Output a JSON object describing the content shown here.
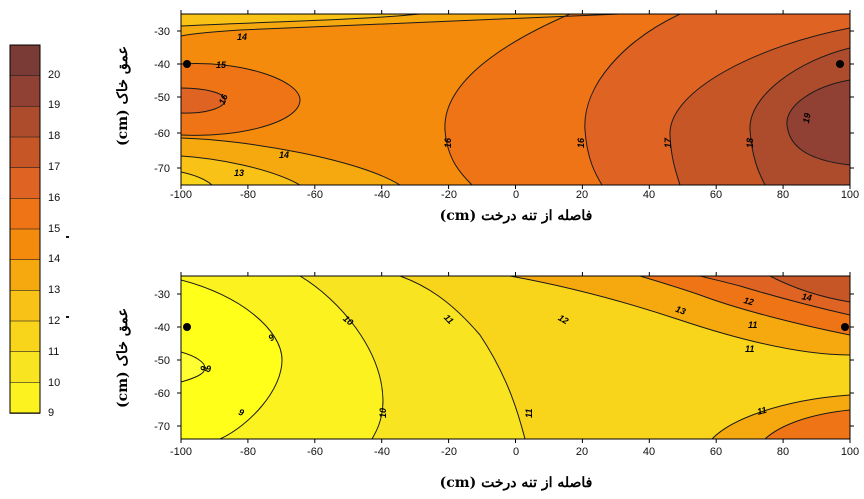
{
  "colors": {
    "9": "#ffff1a",
    "10": "#fbf21f",
    "11": "#f9e422",
    "12": "#f8d41b",
    "13": "#f8c217",
    "14": "#f6a90f",
    "15": "#f48b0c",
    "16": "#ef7415",
    "17": "#df6323",
    "18": "#c65625",
    "19": "#ad4c2d",
    "20": "#904134",
    "21": "#7a3b36"
  },
  "legend": {
    "levels": [
      "9",
      "10",
      "11",
      "12",
      "13",
      "14",
      "15",
      "16",
      "17",
      "18",
      "19",
      "20"
    ],
    "marks": [
      "12",
      "15"
    ]
  },
  "chart_data": [
    {
      "type": "heatmap",
      "subtype": "filled-contour",
      "xlabel": "فاصله از تنه درخت (cm)",
      "ylabel": "عمق خاک (cm)",
      "xlim": [
        -100,
        100
      ],
      "ylim": [
        -75,
        -25
      ],
      "xticks": [
        "-100",
        "-80",
        "-60",
        "-40",
        "-20",
        "0",
        "20",
        "40",
        "60",
        "80",
        "100"
      ],
      "yticks": [
        "-30",
        "-40",
        "-50",
        "-60",
        "-70"
      ],
      "contour_levels": [
        13,
        14,
        15,
        16,
        17,
        18,
        19
      ],
      "contour_labels": [
        "14",
        "15",
        "16",
        "14",
        "13",
        "16",
        "16",
        "17",
        "18",
        "19"
      ],
      "sample_points": [
        {
          "x": -100,
          "y": -40
        },
        {
          "x": 100,
          "y": -40
        }
      ],
      "local_extrema": [
        {
          "x": -100,
          "y": -50,
          "value": 16
        },
        {
          "x": 100,
          "y": -55,
          "value": 19.5
        }
      ]
    },
    {
      "type": "heatmap",
      "subtype": "filled-contour",
      "xlabel": "فاصله از تنه درخت (cm)",
      "ylabel": "عمق خاک (cm)",
      "xlim": [
        -100,
        100
      ],
      "ylim": [
        -75,
        -25
      ],
      "xticks": [
        "-100",
        "-80",
        "-60",
        "-40",
        "-20",
        "0",
        "20",
        "40",
        "60",
        "80",
        "100"
      ],
      "yticks": [
        "-30",
        "-40",
        "-50",
        "-60",
        "-70"
      ],
      "contour_levels": [
        9,
        10,
        11,
        12,
        13,
        14
      ],
      "contour_labels": [
        "9",
        "9",
        "9",
        "10",
        "10",
        "11",
        "12",
        "13",
        "12",
        "14",
        "11",
        "11",
        "11",
        "11",
        "9"
      ],
      "sample_points": [
        {
          "x": -100,
          "y": -40
        },
        {
          "x": 100,
          "y": -40
        }
      ],
      "local_extrema": [
        {
          "x": -100,
          "y": -50,
          "value": 8.8
        },
        {
          "x": 100,
          "y": -27,
          "value": 14.3
        }
      ]
    }
  ]
}
